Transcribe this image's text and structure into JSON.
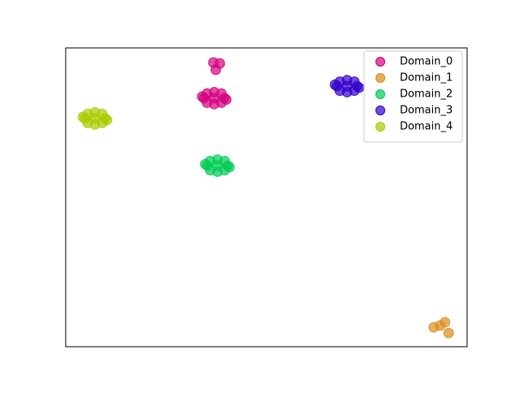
{
  "chart_data": {
    "type": "scatter",
    "xlim": [
      0,
      100
    ],
    "ylim": [
      0,
      100
    ],
    "legend": "upper right",
    "series": [
      {
        "name": "Domain_0",
        "color": "#d6007f",
        "x": [
          37.0,
          34.5,
          39.5,
          37.0,
          37.0,
          35.2,
          38.8,
          35.2,
          38.8,
          34.0,
          40.0,
          36.8,
          38.4,
          37.4
        ],
        "values": [
          83.2,
          83.2,
          83.2,
          85.2,
          81.2,
          84.7,
          84.7,
          81.7,
          81.7,
          83.7,
          82.7,
          95.1,
          94.8,
          92.7
        ]
      },
      {
        "name": "Domain_1",
        "color": "#d98c1a",
        "x": [
          91.7,
          93.3,
          94.5,
          95.4
        ],
        "values": [
          6.5,
          7.1,
          8.2,
          4.6
        ]
      },
      {
        "name": "Domain_2",
        "color": "#00cc55",
        "x": [
          37.8,
          35.3,
          40.3,
          37.8,
          37.8,
          36.0,
          39.6,
          36.0,
          39.6,
          34.8,
          40.8
        ],
        "values": [
          60.6,
          60.6,
          60.6,
          62.6,
          58.6,
          62.1,
          62.1,
          59.1,
          59.1,
          61.1,
          60.1
        ]
      },
      {
        "name": "Domain_3",
        "color": "#3300cc",
        "x": [
          70.1,
          67.6,
          72.6,
          70.1,
          70.1,
          68.3,
          71.9,
          68.3,
          71.9,
          67.1,
          73.1
        ],
        "values": [
          87.2,
          87.2,
          87.2,
          89.2,
          85.2,
          88.7,
          88.7,
          85.7,
          85.7,
          87.7,
          86.7
        ]
      },
      {
        "name": "Domain_4",
        "color": "#a8cc00",
        "x": [
          7.3,
          4.8,
          9.8,
          7.3,
          7.3,
          5.5,
          9.1,
          5.5,
          9.1,
          4.3,
          10.3
        ],
        "values": [
          76.4,
          76.4,
          76.4,
          78.4,
          74.4,
          77.9,
          77.9,
          74.9,
          74.9,
          76.9,
          75.9
        ]
      }
    ]
  }
}
